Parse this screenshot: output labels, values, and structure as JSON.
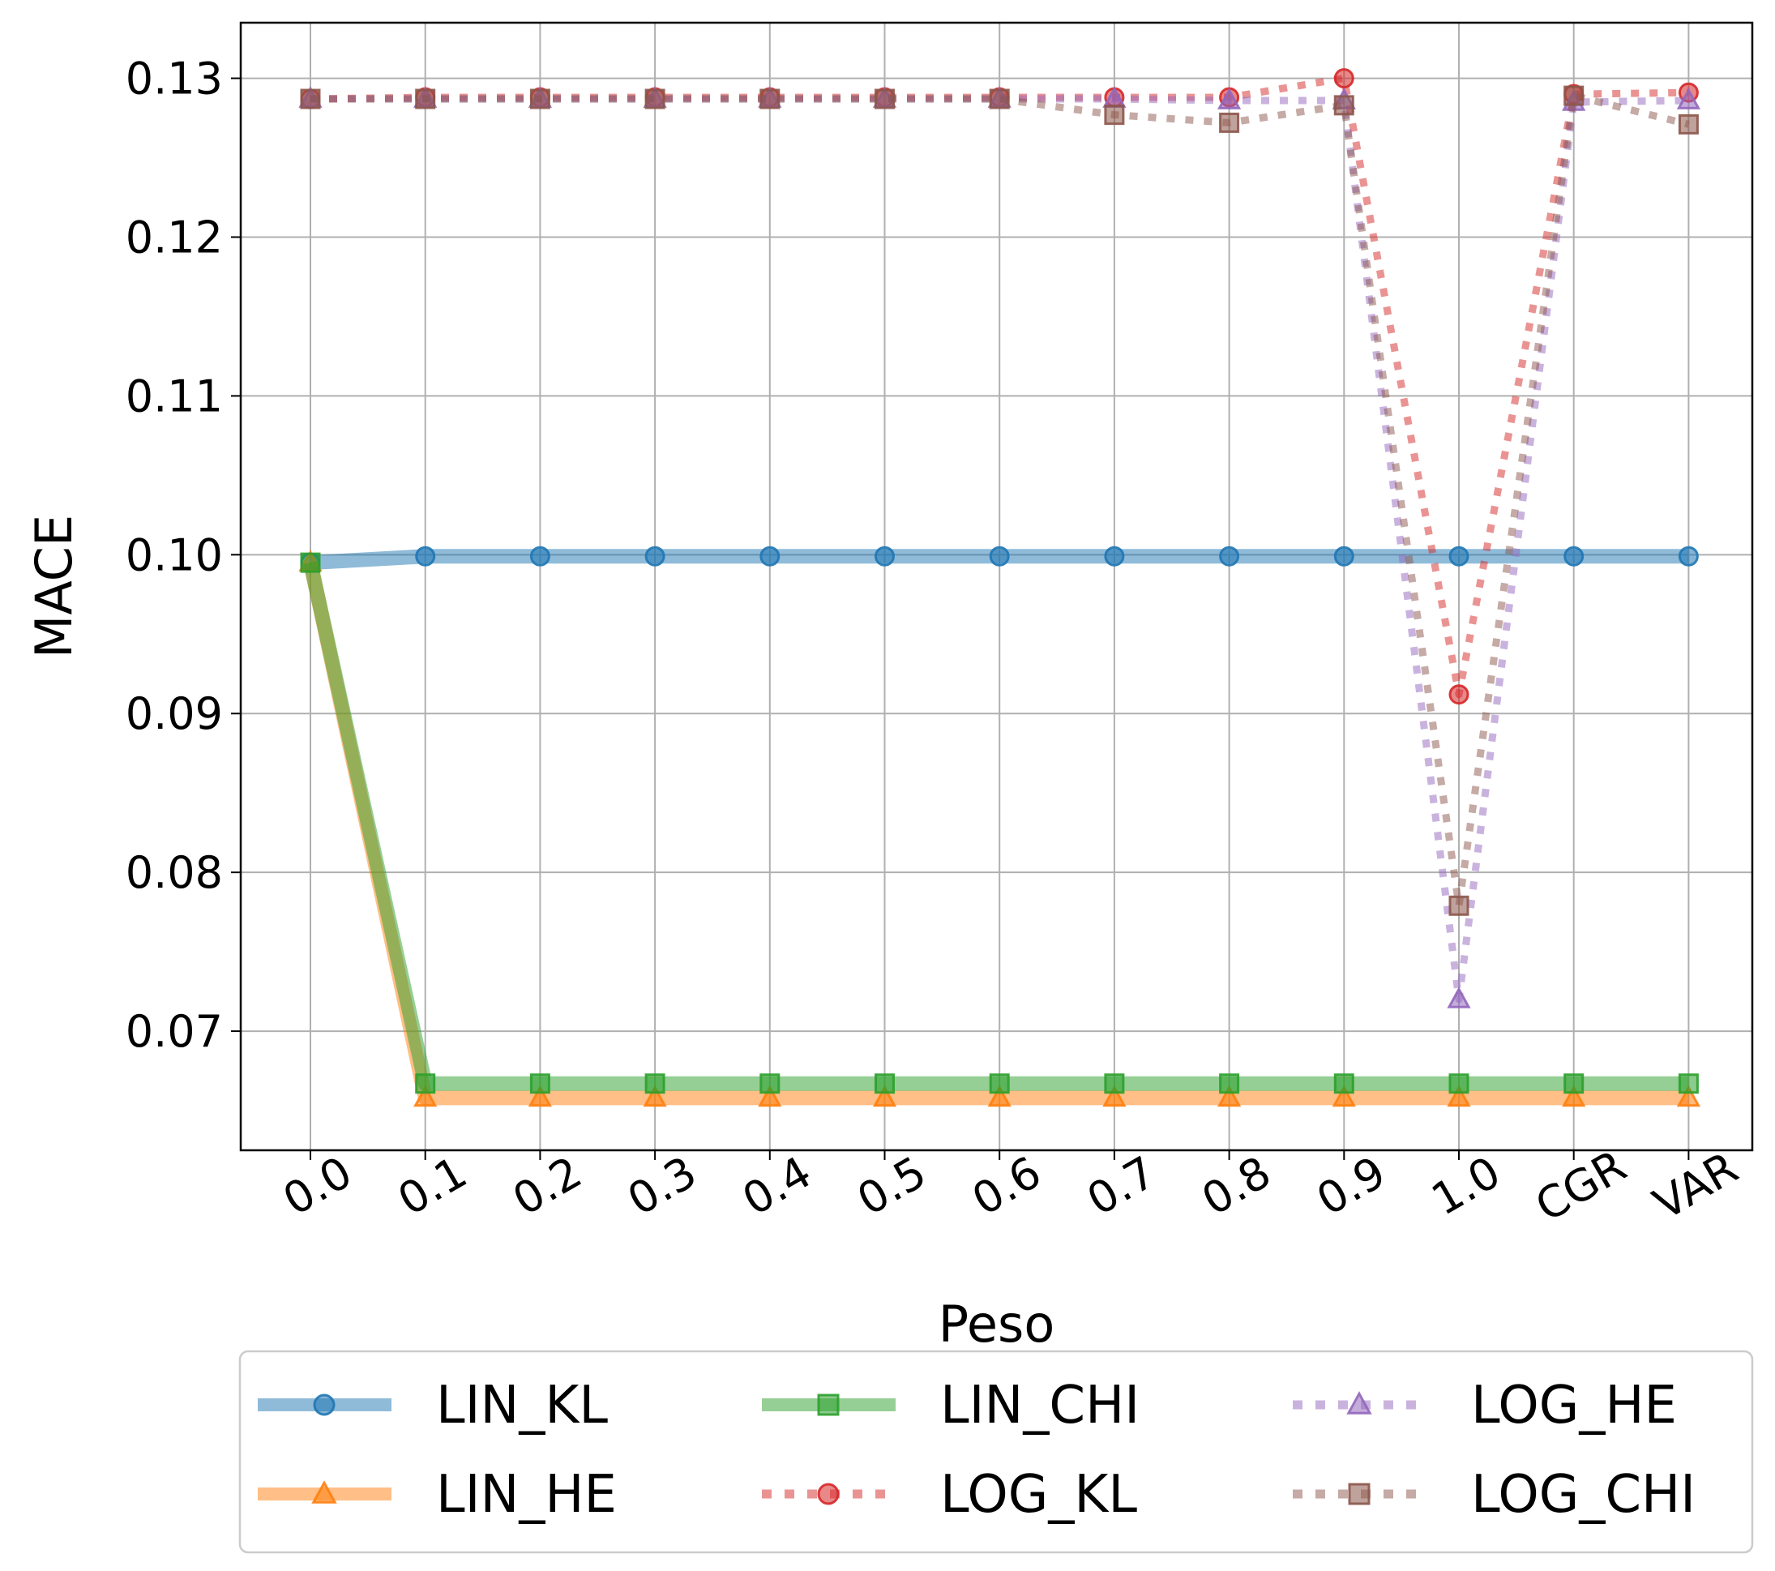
{
  "chart_data": {
    "type": "line",
    "title": "",
    "xlabel": "Peso",
    "ylabel": "MACE",
    "categories": [
      "0.0",
      "0.1",
      "0.2",
      "0.3",
      "0.4",
      "0.5",
      "0.6",
      "0.7",
      "0.8",
      "0.9",
      "1.0",
      "CGR",
      "VAR"
    ],
    "ylim": [
      0.0625,
      0.1335
    ],
    "yticks": [
      "0.07",
      "0.08",
      "0.09",
      "0.10",
      "0.11",
      "0.12",
      "0.13"
    ],
    "grid": true,
    "legend": {
      "position": "bottom",
      "columns": 3
    },
    "series": [
      {
        "name": "LIN_KL",
        "color": "#1f77b4",
        "linestyle": "solid",
        "marker": "circle",
        "values": [
          0.0995,
          0.0999,
          0.0999,
          0.0999,
          0.0999,
          0.0999,
          0.0999,
          0.0999,
          0.0999,
          0.0999,
          0.0999,
          0.0999,
          0.0999
        ]
      },
      {
        "name": "LIN_HE",
        "color": "#ff7f0e",
        "linestyle": "solid",
        "marker": "triangle",
        "values": [
          0.0995,
          0.0658,
          0.0658,
          0.0658,
          0.0658,
          0.0658,
          0.0658,
          0.0658,
          0.0658,
          0.0658,
          0.0658,
          0.0658,
          0.0658
        ]
      },
      {
        "name": "LIN_CHI",
        "color": "#2ca02c",
        "linestyle": "solid",
        "marker": "square",
        "values": [
          0.0995,
          0.0667,
          0.0667,
          0.0667,
          0.0667,
          0.0667,
          0.0667,
          0.0667,
          0.0667,
          0.0667,
          0.0667,
          0.0667,
          0.0667
        ]
      },
      {
        "name": "LOG_KL",
        "color": "#d62728",
        "linestyle": "dotted",
        "marker": "circle",
        "values": [
          0.1287,
          0.1288,
          0.1288,
          0.1288,
          0.1288,
          0.1288,
          0.1288,
          0.1288,
          0.1288,
          0.13,
          0.0912,
          0.129,
          0.1291
        ]
      },
      {
        "name": "LOG_HE",
        "color": "#9467bd",
        "linestyle": "dotted",
        "marker": "triangle",
        "values": [
          0.1287,
          0.1287,
          0.1287,
          0.1287,
          0.1287,
          0.1287,
          0.1287,
          0.1287,
          0.1286,
          0.1286,
          0.072,
          0.1285,
          0.1286
        ]
      },
      {
        "name": "LOG_CHI",
        "color": "#8c564b",
        "linestyle": "dotted",
        "marker": "square",
        "values": [
          0.1287,
          0.1287,
          0.1287,
          0.1287,
          0.1287,
          0.1287,
          0.1287,
          0.1277,
          0.1272,
          0.1283,
          0.0779,
          0.1289,
          0.1271
        ]
      }
    ]
  }
}
